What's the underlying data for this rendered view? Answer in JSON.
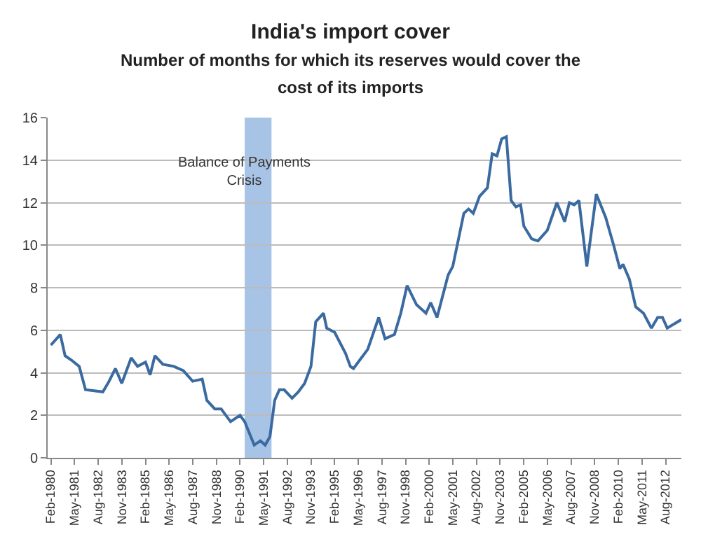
{
  "chart_data": {
    "type": "line",
    "title": "India's import cover",
    "subtitle": "Number of months for which its reserves would cover the cost of its imports",
    "x": [
      "1980-02",
      "1980-08",
      "1980-11",
      "1981-03",
      "1981-08",
      "1981-12",
      "1982-11",
      "1983-03",
      "1983-07",
      "1983-11",
      "1984-05",
      "1984-09",
      "1985-02",
      "1985-05",
      "1985-08",
      "1986-01",
      "1986-08",
      "1987-02",
      "1987-08",
      "1988-02",
      "1988-05",
      "1988-10",
      "1989-02",
      "1989-08",
      "1990-02",
      "1990-05",
      "1990-11",
      "1991-03",
      "1991-06",
      "1991-09",
      "1991-12",
      "1992-03",
      "1992-06",
      "1992-11",
      "1993-03",
      "1993-07",
      "1993-11",
      "1994-02",
      "1994-07",
      "1994-09",
      "1995-02",
      "1995-09",
      "1995-12",
      "1996-02",
      "1996-07",
      "1996-11",
      "1997-06",
      "1997-10",
      "1998-04",
      "1998-08",
      "1998-12",
      "1999-06",
      "1999-12",
      "2000-03",
      "2000-07",
      "2001-02",
      "2001-05",
      "2001-12",
      "2002-03",
      "2002-06",
      "2002-10",
      "2003-03",
      "2003-06",
      "2003-09",
      "2003-12",
      "2004-03",
      "2004-06",
      "2004-09",
      "2004-12",
      "2005-02",
      "2005-07",
      "2005-11",
      "2006-05",
      "2006-11",
      "2007-04",
      "2007-07",
      "2007-10",
      "2008-01",
      "2008-06",
      "2008-12",
      "2009-06",
      "2009-11",
      "2010-03",
      "2010-05",
      "2010-09",
      "2011-01",
      "2011-06",
      "2011-11",
      "2012-03",
      "2012-06",
      "2012-09",
      "2013-06"
    ],
    "series": [
      {
        "color": "#3a6aa0",
        "values": [
          5.3,
          5.8,
          4.8,
          4.6,
          4.3,
          3.2,
          3.1,
          3.6,
          4.2,
          3.5,
          4.7,
          4.3,
          4.5,
          3.9,
          4.8,
          4.4,
          4.3,
          4.1,
          3.6,
          3.7,
          2.7,
          2.3,
          2.3,
          1.7,
          2.0,
          1.7,
          0.6,
          0.8,
          0.6,
          1.0,
          2.7,
          3.2,
          3.2,
          2.8,
          3.1,
          3.5,
          4.3,
          6.4,
          6.8,
          6.1,
          5.9,
          4.9,
          4.3,
          4.2,
          4.7,
          5.1,
          6.6,
          5.6,
          5.8,
          6.8,
          8.1,
          7.2,
          6.8,
          7.3,
          6.6,
          8.6,
          9.0,
          11.5,
          11.7,
          11.5,
          12.3,
          12.7,
          14.3,
          14.2,
          15.0,
          15.1,
          12.1,
          11.8,
          11.9,
          10.9,
          10.3,
          10.2,
          10.7,
          12.0,
          11.1,
          12.0,
          11.9,
          12.1,
          9.0,
          12.4,
          11.3,
          10.0,
          8.9,
          9.1,
          8.4,
          7.1,
          6.8,
          6.1,
          6.6,
          6.6,
          6.1,
          6.5
        ]
      }
    ],
    "xlim": [
      "1979-12",
      "2013-06"
    ],
    "xticks": [
      {
        "value": "1980-02",
        "label": "Feb-1980"
      },
      {
        "value": "1981-05",
        "label": "May-1981"
      },
      {
        "value": "1982-08",
        "label": "Aug-1982"
      },
      {
        "value": "1983-11",
        "label": "Nov-1983"
      },
      {
        "value": "1985-02",
        "label": "Feb-1985"
      },
      {
        "value": "1986-05",
        "label": "May-1986"
      },
      {
        "value": "1987-08",
        "label": "Aug-1987"
      },
      {
        "value": "1988-11",
        "label": "Nov-1988"
      },
      {
        "value": "1990-02",
        "label": "Feb-1990"
      },
      {
        "value": "1991-05",
        "label": "May-1991"
      },
      {
        "value": "1992-08",
        "label": "Aug-1992"
      },
      {
        "value": "1993-11",
        "label": "Nov-1993"
      },
      {
        "value": "1995-02",
        "label": "Feb-1995"
      },
      {
        "value": "1996-05",
        "label": "May-1996"
      },
      {
        "value": "1997-08",
        "label": "Aug-1997"
      },
      {
        "value": "1998-11",
        "label": "Nov-1998"
      },
      {
        "value": "2000-02",
        "label": "Feb-2000"
      },
      {
        "value": "2001-05",
        "label": "May-2001"
      },
      {
        "value": "2002-08",
        "label": "Aug-2002"
      },
      {
        "value": "2003-11",
        "label": "Nov-2003"
      },
      {
        "value": "2005-02",
        "label": "Feb-2005"
      },
      {
        "value": "2006-05",
        "label": "May-2006"
      },
      {
        "value": "2007-08",
        "label": "Aug-2007"
      },
      {
        "value": "2008-11",
        "label": "Nov-2008"
      },
      {
        "value": "2010-02",
        "label": "Feb-2010"
      },
      {
        "value": "2011-05",
        "label": "May-2011"
      },
      {
        "value": "2012-08",
        "label": "Aug-2012"
      }
    ],
    "ylim": [
      0,
      16
    ],
    "yticks": [
      0,
      2,
      4,
      6,
      8,
      10,
      12,
      14,
      16
    ],
    "bands": [
      {
        "axis": "x",
        "from": "1990-05",
        "to": "1991-10",
        "label": "Balance of Payments Crisis",
        "color": "#9dbde3"
      }
    ],
    "grid": "y",
    "marker": "none",
    "line_style": "solid"
  }
}
